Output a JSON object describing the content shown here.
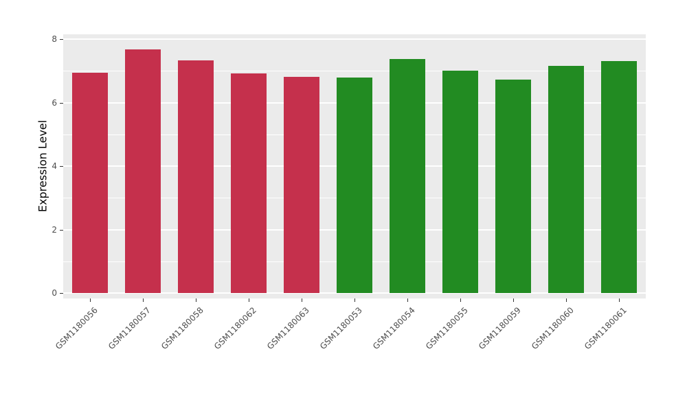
{
  "chart_data": {
    "type": "bar",
    "title": "",
    "xlabel": "",
    "ylabel": "Expression Level",
    "categories": [
      "GSM1180056",
      "GSM1180057",
      "GSM1180058",
      "GSM1180062",
      "GSM1180063",
      "GSM1180053",
      "GSM1180054",
      "GSM1180055",
      "GSM1180059",
      "GSM1180060",
      "GSM1180061"
    ],
    "values": [
      6.94,
      7.68,
      7.33,
      6.92,
      6.81,
      6.79,
      7.37,
      7.01,
      6.72,
      7.16,
      7.31
    ],
    "bar_colors": [
      "#C5304C",
      "#C5304C",
      "#C5304C",
      "#C5304C",
      "#C5304C",
      "#228B22",
      "#228B22",
      "#228B22",
      "#228B22",
      "#228B22",
      "#228B22"
    ],
    "group_colors": {
      "red_group": "#C5304C",
      "green_group": "#228B22"
    },
    "y_ticks": [
      0,
      2,
      4,
      6,
      8
    ],
    "y_minor_ticks": [
      1,
      3,
      5,
      7
    ],
    "ylim": [
      0,
      8.1
    ],
    "grid": true,
    "legend_position": "none",
    "panel_background": "#EBEBEB",
    "grid_color": "#FFFFFF"
  }
}
